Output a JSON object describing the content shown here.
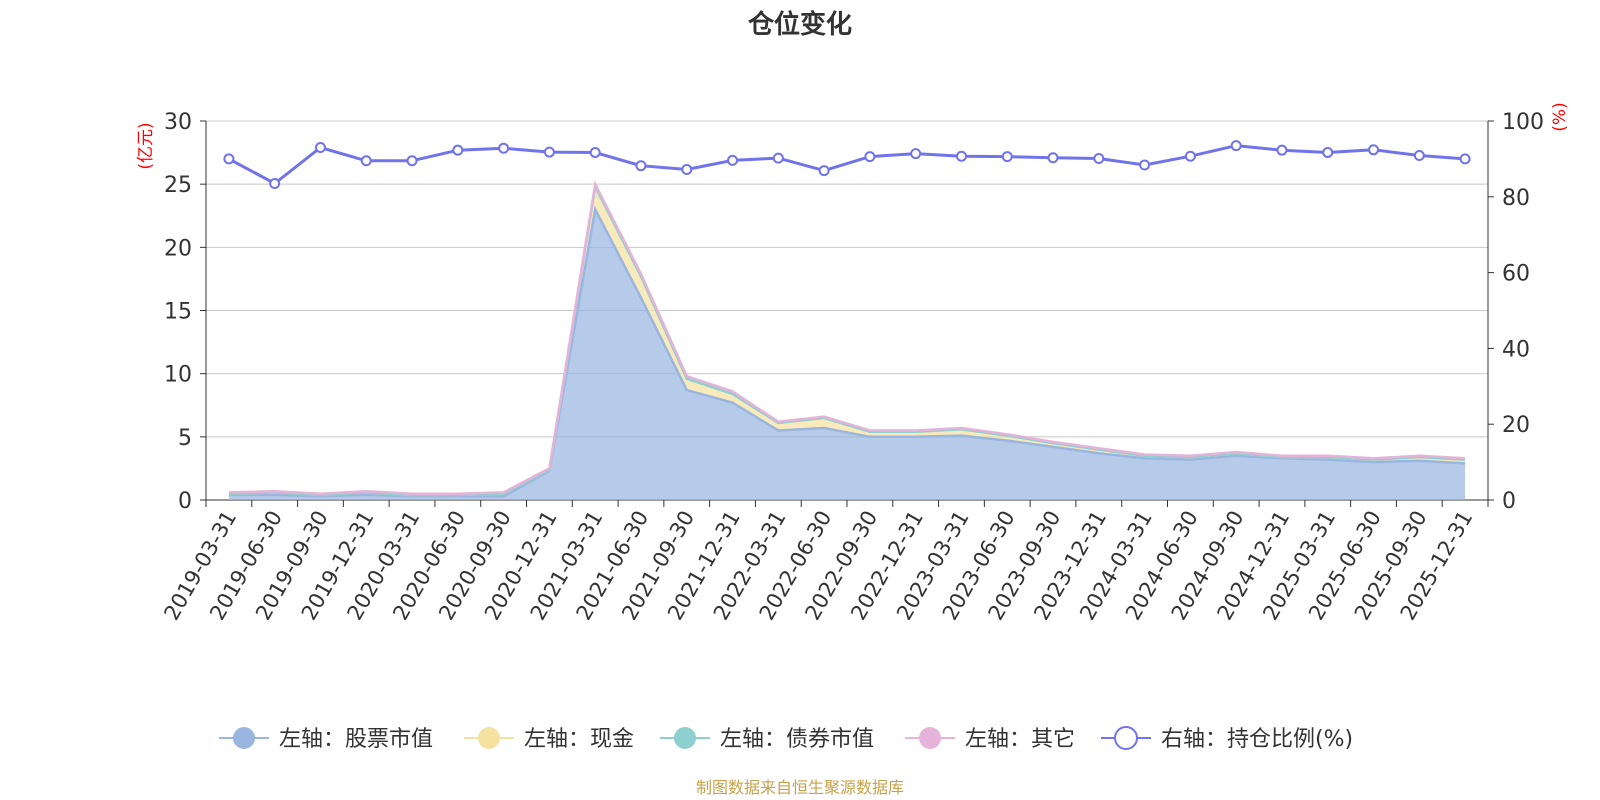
{
  "chart_data": {
    "type": "area",
    "title": "仓位变化",
    "y_left_label": "(亿元)",
    "y_right_label": "(%)",
    "y_left_range": [
      0,
      30
    ],
    "y_left_ticks": [
      0,
      5,
      10,
      15,
      20,
      25,
      30
    ],
    "y_right_range": [
      0,
      100
    ],
    "y_right_ticks": [
      0,
      20,
      40,
      60,
      80,
      100
    ],
    "grid": true,
    "legend_position": "bottom",
    "categories": [
      "2019-03-31",
      "2019-06-30",
      "2019-09-30",
      "2019-12-31",
      "2020-03-31",
      "2020-06-30",
      "2020-09-30",
      "2020-12-31",
      "2021-03-31",
      "2021-06-30",
      "2021-09-30",
      "2021-12-31",
      "2022-03-31",
      "2022-06-30",
      "2022-09-30",
      "2022-12-31",
      "2023-03-31",
      "2023-06-30",
      "2023-09-30",
      "2023-12-31",
      "2024-03-31",
      "2024-06-30",
      "2024-09-30",
      "2024-12-31",
      "2025-03-31",
      "2025-06-30",
      "2025-09-30",
      "2025-12-31"
    ],
    "series": [
      {
        "name": "左轴：股票市值",
        "axis": "left",
        "stacked": true,
        "color": "#9ab6e0",
        "values": [
          0.4,
          0.4,
          0.3,
          0.4,
          0.3,
          0.3,
          0.3,
          2.3,
          23.0,
          16.0,
          8.7,
          7.7,
          5.5,
          5.7,
          5.0,
          5.0,
          5.1,
          4.7,
          4.2,
          3.7,
          3.3,
          3.2,
          3.5,
          3.3,
          3.2,
          3.0,
          3.1,
          2.9
        ]
      },
      {
        "name": "左轴：现金",
        "axis": "left",
        "stacked": true,
        "color": "#f5e2a0",
        "values": [
          0.1,
          0.2,
          0.1,
          0.2,
          0.1,
          0.1,
          0.2,
          0.1,
          1.8,
          1.7,
          0.9,
          0.7,
          0.6,
          0.8,
          0.4,
          0.4,
          0.5,
          0.4,
          0.3,
          0.3,
          0.2,
          0.2,
          0.2,
          0.1,
          0.2,
          0.2,
          0.3,
          0.3
        ]
      },
      {
        "name": "左轴：债券市值",
        "axis": "left",
        "stacked": true,
        "color": "#8ecfcf",
        "values": [
          0,
          0,
          0,
          0,
          0,
          0,
          0,
          0,
          0,
          0,
          0,
          0,
          0,
          0,
          0,
          0,
          0,
          0,
          0,
          0,
          0,
          0,
          0,
          0,
          0,
          0,
          0,
          0
        ]
      },
      {
        "name": "左轴：其它",
        "axis": "left",
        "stacked": true,
        "color": "#e5b3d9",
        "values": [
          0.1,
          0.1,
          0.1,
          0.1,
          0.1,
          0.1,
          0.1,
          0.1,
          0.2,
          0.2,
          0.2,
          0.2,
          0.1,
          0.1,
          0.1,
          0.1,
          0.1,
          0.1,
          0.1,
          0.1,
          0.1,
          0.1,
          0.1,
          0.1,
          0.1,
          0.1,
          0.1,
          0.1
        ]
      },
      {
        "name": "右轴：持仓比例(%)",
        "axis": "right",
        "stacked": false,
        "color": "#7073ea",
        "values": [
          90.0,
          83.5,
          93.0,
          89.5,
          89.5,
          92.3,
          92.8,
          91.8,
          91.7,
          88.2,
          87.2,
          89.6,
          90.2,
          86.9,
          90.6,
          91.4,
          90.7,
          90.6,
          90.3,
          90.1,
          88.4,
          90.7,
          93.5,
          92.3,
          91.7,
          92.4,
          90.9,
          90.0
        ]
      }
    ]
  },
  "footer": {
    "source": "制图数据来自恒生聚源数据库"
  },
  "colors": {
    "axis_left_label": "#ff0000",
    "axis_right_label": "#ff0000",
    "title": "#333333",
    "footer": "#c8a24a"
  }
}
